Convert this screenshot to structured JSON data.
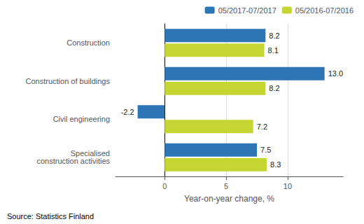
{
  "chart_data": {
    "type": "bar",
    "orientation": "horizontal",
    "categories": [
      "Construction",
      "Construction of buildings",
      "Civil engineering",
      "Specialised\nconstruction activities"
    ],
    "series": [
      {
        "name": "05/2017-07/2017",
        "color": "#2E75B6",
        "values": [
          8.2,
          13.0,
          -2.2,
          7.5
        ],
        "value_labels": [
          "8.2",
          "13.0",
          "-2.2",
          "7.5"
        ]
      },
      {
        "name": "05/2016-07/2016",
        "color": "#C5D633",
        "values": [
          8.1,
          8.2,
          7.2,
          8.3
        ]
      }
    ],
    "xlabel": "Year-on-year change, %",
    "xlim": [
      -4,
      14.5
    ],
    "xticks": [
      0,
      5,
      10
    ],
    "grid": true,
    "legend": "upper right",
    "data_labels": true,
    "source": "Source: Statistics Finland"
  }
}
